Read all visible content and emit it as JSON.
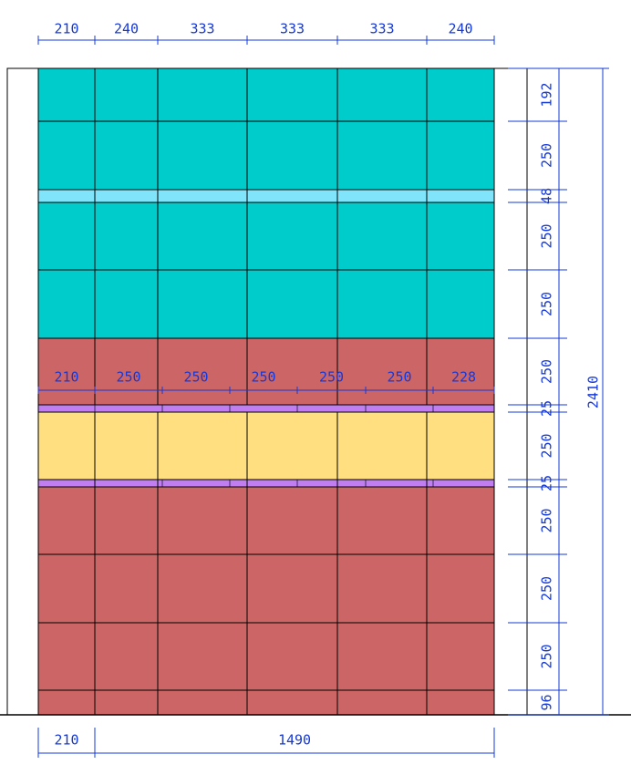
{
  "colors": {
    "teal_tile": "#00cccc",
    "light_blue_band": "#80e4fb",
    "red_tile": "#cc6666",
    "yellow_band": "#ffdf80",
    "purple_strip": "#c07ef0",
    "grid_line": "#000000",
    "dimension": "#1538d8"
  },
  "top_dimensions": [
    "210",
    "240",
    "333",
    "333",
    "333",
    "240"
  ],
  "mid_dimensions": [
    "210",
    "250",
    "250",
    "250",
    "250",
    "250",
    "228"
  ],
  "bottom_dimensions": [
    "210",
    "1490"
  ],
  "right_dimensions": [
    "192",
    "250",
    "48",
    "250",
    "250",
    "250",
    "25",
    "250",
    "25",
    "250",
    "250",
    "250",
    "96"
  ],
  "total_height": "2410"
}
